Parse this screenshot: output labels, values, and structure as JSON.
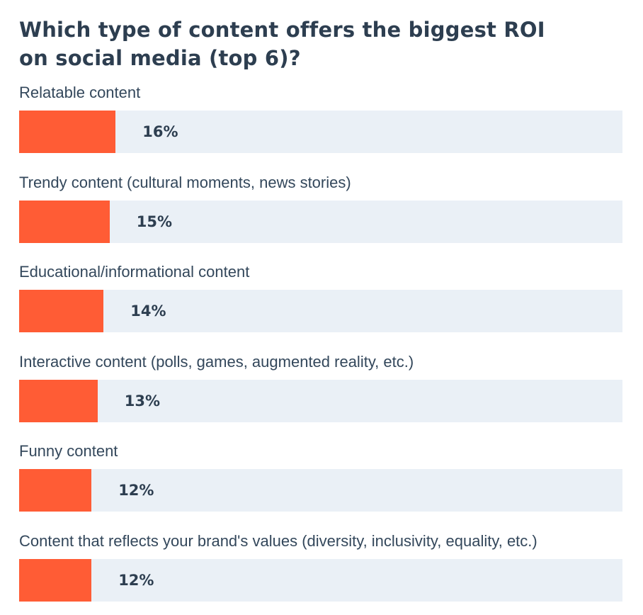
{
  "chart_data": {
    "type": "bar",
    "orientation": "horizontal",
    "title": "Which type of content offers the biggest ROI on social media (top 6)?",
    "title_lines": [
      "Which type of content offers the biggest ROI",
      "on social media (top 6)?"
    ],
    "categories": [
      "Relatable content",
      "Trendy content (cultural moments, news stories)",
      "Educational/informational content",
      "Interactive content (polls, games, augmented reality, etc.)",
      "Funny content",
      "Content that reflects your brand's values (diversity, inclusivity, equality, etc.)"
    ],
    "values": [
      16,
      15,
      14,
      13,
      12,
      12
    ],
    "value_labels": [
      "16%",
      "15%",
      "14%",
      "13%",
      "12%",
      "12%"
    ],
    "unit": "%",
    "xlim": [
      0,
      100
    ],
    "xlabel": "",
    "ylabel": "",
    "legend": "none",
    "grid": false
  },
  "colors": {
    "bar": "#ff5c35",
    "track": "#eaf0f6",
    "text": "#33475b",
    "title": "#2d3e50"
  }
}
